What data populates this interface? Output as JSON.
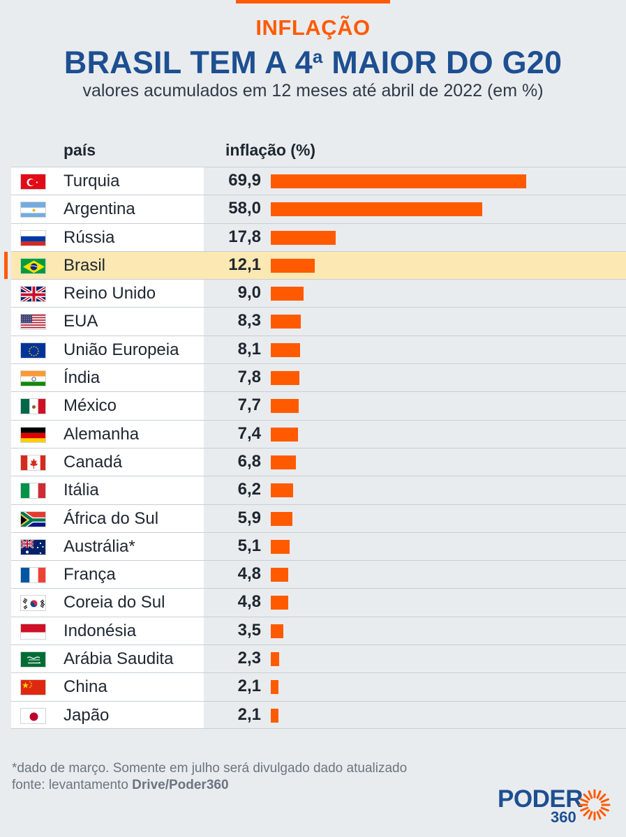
{
  "header": {
    "kicker": "INFLAÇÃO",
    "title_pre": "BRASIL TEM A 4",
    "title_sup": "a",
    "title_post": " MAIOR DO G20",
    "subtitle": "valores acumulados em 12 meses até abril de 2022 (em %)"
  },
  "columns": {
    "country": "país",
    "value": "inflação (%)"
  },
  "chart_data": {
    "type": "bar",
    "orientation": "horizontal",
    "title": "BRASIL TEM A 4ª MAIOR DO G20",
    "subtitle": "valores acumulados em 12 meses até abril de 2022 (em %)",
    "xlim": [
      0,
      70
    ],
    "highlight": "Brasil",
    "colors": {
      "bar": "#ff5a00",
      "highlight_row": "#fce8b2",
      "title": "#1d4f91"
    },
    "rows": [
      {
        "country": "Turquia",
        "value_label": "69,9",
        "value": 69.9,
        "flag": "flag-turkey"
      },
      {
        "country": "Argentina",
        "value_label": "58,0",
        "value": 58.0,
        "flag": "flag-argentina"
      },
      {
        "country": "Rússia",
        "value_label": "17,8",
        "value": 17.8,
        "flag": "flag-russia"
      },
      {
        "country": "Brasil",
        "value_label": "12,1",
        "value": 12.1,
        "flag": "flag-brazil"
      },
      {
        "country": "Reino Unido",
        "value_label": "9,0",
        "value": 9.0,
        "flag": "flag-uk"
      },
      {
        "country": "EUA",
        "value_label": "8,3",
        "value": 8.3,
        "flag": "flag-usa"
      },
      {
        "country": "União Europeia",
        "value_label": "8,1",
        "value": 8.1,
        "flag": "flag-eu"
      },
      {
        "country": "Índia",
        "value_label": "7,8",
        "value": 7.8,
        "flag": "flag-india"
      },
      {
        "country": "México",
        "value_label": "7,7",
        "value": 7.7,
        "flag": "flag-mexico"
      },
      {
        "country": "Alemanha",
        "value_label": "7,4",
        "value": 7.4,
        "flag": "flag-germany"
      },
      {
        "country": "Canadá",
        "value_label": "6,8",
        "value": 6.8,
        "flag": "flag-canada"
      },
      {
        "country": "Itália",
        "value_label": "6,2",
        "value": 6.2,
        "flag": "flag-italy"
      },
      {
        "country": "África do Sul",
        "value_label": "5,9",
        "value": 5.9,
        "flag": "flag-south-africa"
      },
      {
        "country": "Austrália*",
        "value_label": "5,1",
        "value": 5.1,
        "flag": "flag-australia"
      },
      {
        "country": "França",
        "value_label": "4,8",
        "value": 4.8,
        "flag": "flag-france"
      },
      {
        "country": "Coreia do Sul",
        "value_label": "4,8",
        "value": 4.8,
        "flag": "flag-south-korea"
      },
      {
        "country": "Indonésia",
        "value_label": "3,5",
        "value": 3.5,
        "flag": "flag-indonesia"
      },
      {
        "country": "Arábia Saudita",
        "value_label": "2,3",
        "value": 2.3,
        "flag": "flag-saudi-arabia"
      },
      {
        "country": "China",
        "value_label": "2,1",
        "value": 2.1,
        "flag": "flag-china"
      },
      {
        "country": "Japão",
        "value_label": "2,1",
        "value": 2.1,
        "flag": "flag-japan"
      }
    ]
  },
  "footer": {
    "note": "*dado de março. Somente em julho será divulgado dado atualizado",
    "source_prefix": "fonte: levantamento ",
    "source_bold": "Drive/Poder360"
  },
  "logo": {
    "word": "PODER",
    "number": "360"
  }
}
